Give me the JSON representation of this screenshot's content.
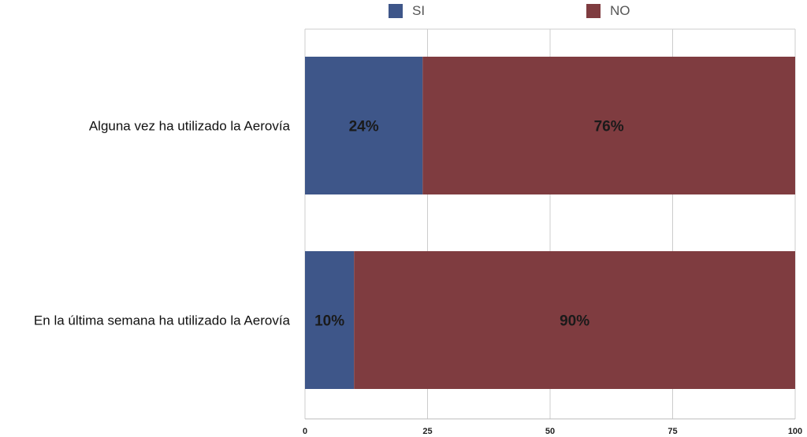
{
  "chart_data": {
    "type": "bar",
    "orientation": "horizontal",
    "stacked": true,
    "categories": [
      "Alguna vez ha utilizado la Aerovía",
      "En la última semana ha utilizado la Aerovía"
    ],
    "series": [
      {
        "name": "SI",
        "color": "#3e5689",
        "values": [
          24,
          10
        ],
        "labels": [
          "24%",
          "10%"
        ]
      },
      {
        "name": "NO",
        "color": "#7f3c40",
        "values": [
          76,
          90
        ],
        "labels": [
          "76%",
          "90%"
        ]
      }
    ],
    "xlim": [
      0,
      100
    ],
    "xticks": [
      0,
      25,
      50,
      75,
      100
    ],
    "xtick_labels": [
      "0",
      "25",
      "50",
      "75",
      "100"
    ],
    "grid": "vertical",
    "legend_position": "top"
  }
}
